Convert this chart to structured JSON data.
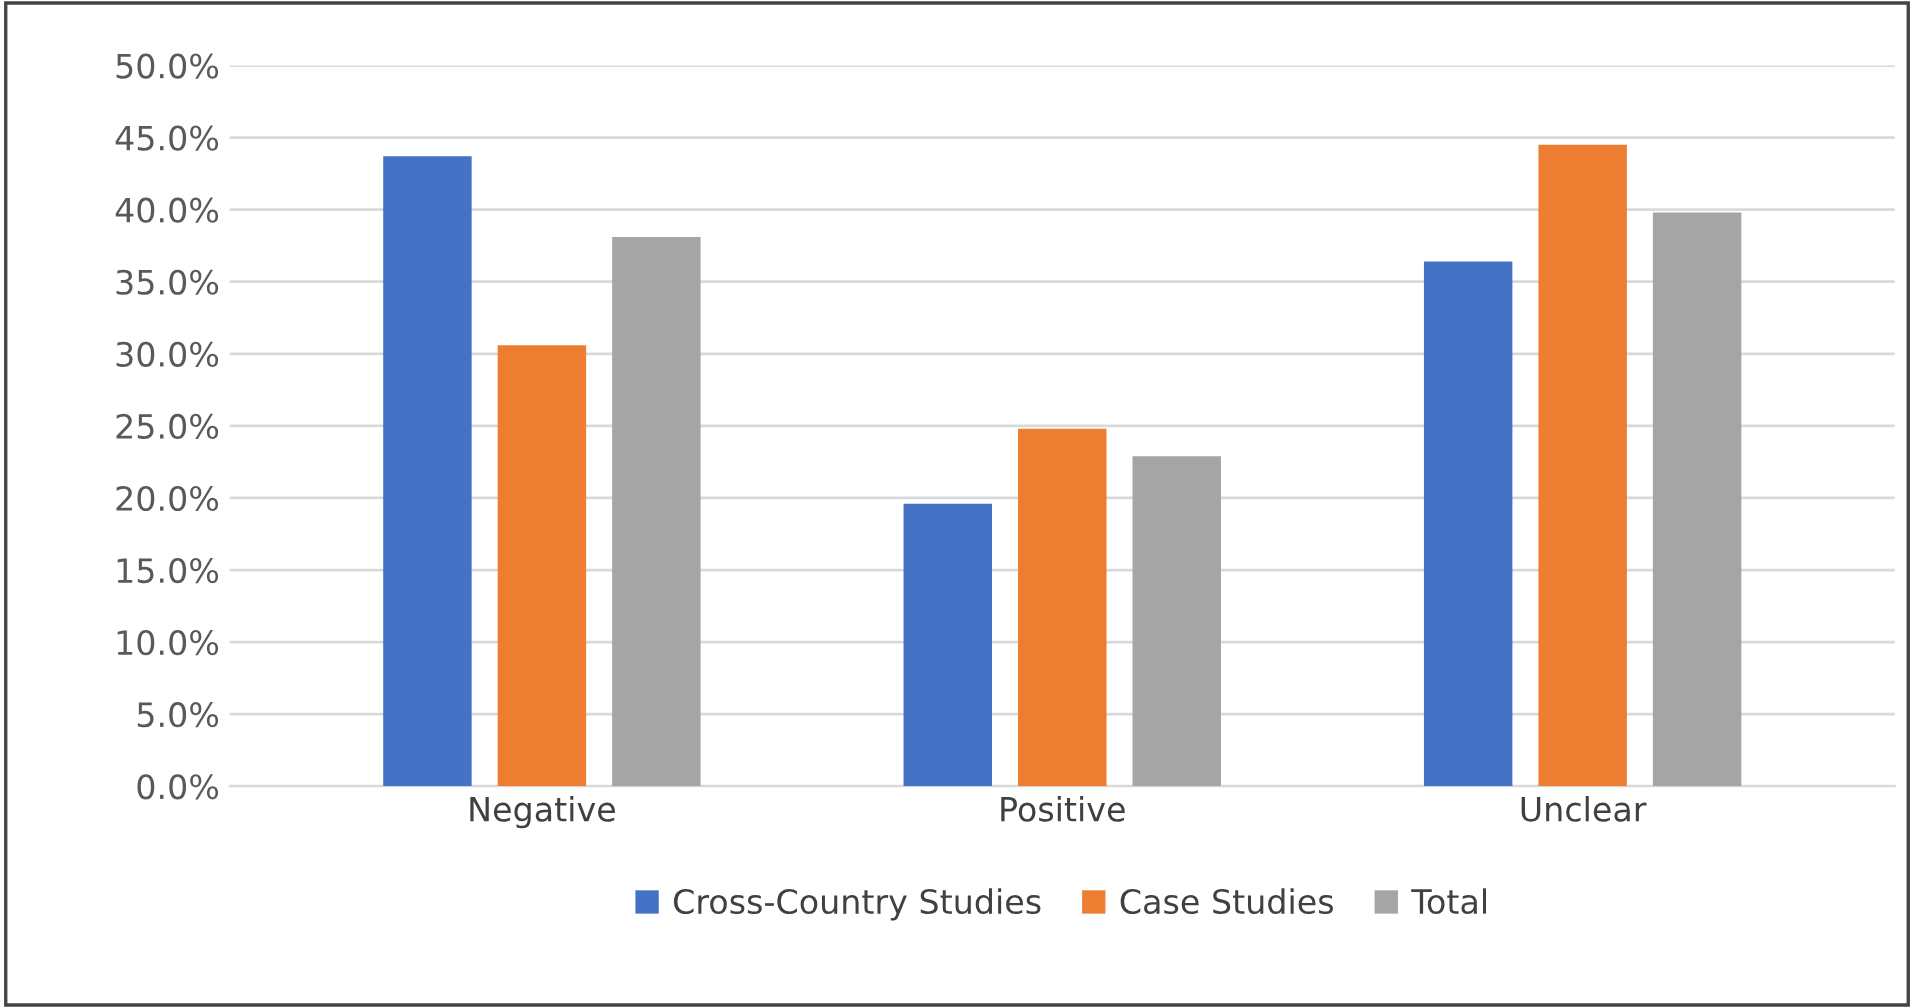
{
  "chart_data": {
    "type": "bar",
    "categories": [
      "Negative",
      "Positive",
      "Unclear"
    ],
    "series": [
      {
        "name": "Cross-Country Studies",
        "color": "#4472c4",
        "values": [
          43.7,
          19.6,
          36.4
        ]
      },
      {
        "name": "Case Studies",
        "color": "#ed7d31",
        "values": [
          30.6,
          24.8,
          44.5
        ]
      },
      {
        "name": "Total",
        "color": "#a5a5a5",
        "values": [
          38.1,
          22.9,
          39.8
        ]
      }
    ],
    "ylim": [
      0,
      50
    ],
    "yticks": [
      {
        "value": 0,
        "label": "0.0%"
      },
      {
        "value": 5,
        "label": "5.0%"
      },
      {
        "value": 10,
        "label": "10.0%"
      },
      {
        "value": 15,
        "label": "15.0%"
      },
      {
        "value": 20,
        "label": "20.0%"
      },
      {
        "value": 25,
        "label": "25.0%"
      },
      {
        "value": 30,
        "label": "30.0%"
      },
      {
        "value": 35,
        "label": "35.0%"
      },
      {
        "value": 40,
        "label": "40.0%"
      },
      {
        "value": 45,
        "label": "45.0%"
      },
      {
        "value": 50,
        "label": "50.0%"
      }
    ],
    "grid": "y",
    "legend": "bottom"
  }
}
